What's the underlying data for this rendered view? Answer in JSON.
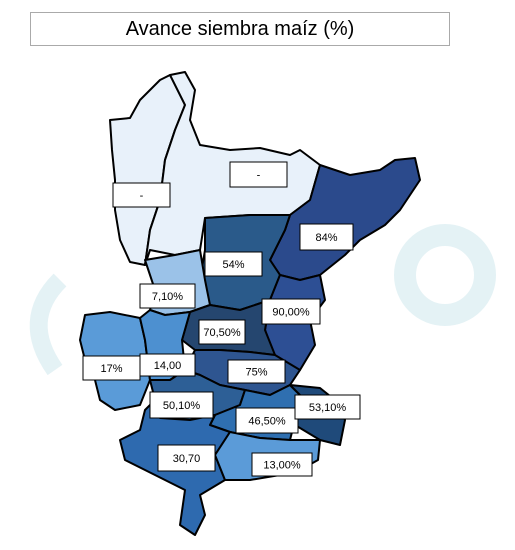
{
  "title": "Avance siembra maíz  (%)",
  "regions": [
    {
      "label": "-",
      "color": "#e8f1fa"
    },
    {
      "label": "-",
      "color": "#e8f1fa"
    },
    {
      "label": "84%",
      "color": "#2b4a8c"
    },
    {
      "label": "54%",
      "color": "#2a5a8a"
    },
    {
      "label": "7,10%",
      "color": "#9bc2e8"
    },
    {
      "label": "90,00%",
      "color": "#2d4f94"
    },
    {
      "label": "70,50%",
      "color": "#25466f"
    },
    {
      "label": "17%",
      "color": "#5a9bd8"
    },
    {
      "label": "14,00",
      "color": "#4d90d0"
    },
    {
      "label": "75%",
      "color": "#2e5590"
    },
    {
      "label": "50,10%",
      "color": "#2d5f96"
    },
    {
      "label": "46,50%",
      "color": "#2f6fb0"
    },
    {
      "label": "53,10%",
      "color": "#1f4a7a"
    },
    {
      "label": "30,70",
      "color": "#2e6aaf"
    },
    {
      "label": "13,00%",
      "color": "#5b9bd8"
    }
  ]
}
